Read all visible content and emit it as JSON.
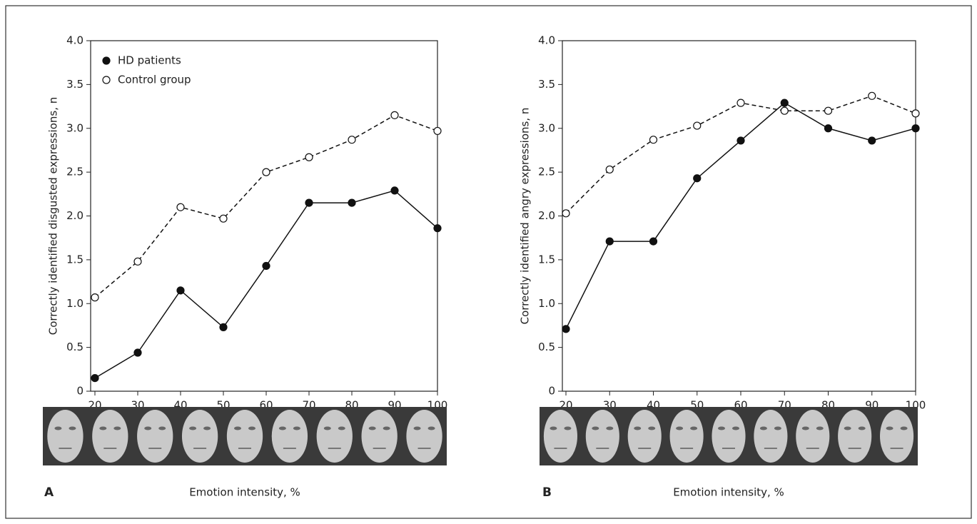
{
  "chart_data": [
    {
      "type": "line",
      "panel": "A",
      "x": [
        20,
        30,
        40,
        50,
        60,
        70,
        80,
        90,
        100
      ],
      "xlim": [
        20,
        100
      ],
      "xticks": [
        20,
        30,
        40,
        50,
        60,
        70,
        80,
        90,
        100
      ],
      "ylim": [
        0,
        4
      ],
      "yticks": [
        0,
        0.5,
        {
          "value": 1,
          "label": "1.0"
        },
        1.5,
        {
          "value": 2,
          "label": "2.0"
        },
        2.5,
        {
          "value": 3,
          "label": "3.0"
        },
        3.5,
        {
          "value": 4,
          "label": "4.0"
        }
      ],
      "x_label": "Emotion intensity, %",
      "y_label": "Correctly identified disgusted expressions, n",
      "legend": "upper left",
      "series": [
        {
          "name": "HD patients",
          "color": "#111111",
          "line_style": "solid",
          "marker": "filled",
          "values": [
            0.15,
            0.44,
            1.15,
            0.73,
            1.43,
            2.15,
            2.15,
            2.29,
            1.86
          ]
        },
        {
          "name": "Control group",
          "color": "#111111",
          "line_style": "dashed",
          "marker": "open",
          "values": [
            1.07,
            1.48,
            2.1,
            1.97,
            2.5,
            2.67,
            2.87,
            3.15,
            2.97
          ]
        }
      ]
    },
    {
      "type": "line",
      "panel": "B",
      "x": [
        20,
        30,
        40,
        50,
        60,
        70,
        80,
        90,
        100
      ],
      "xlim": [
        20,
        100
      ],
      "xticks": [
        20,
        30,
        40,
        50,
        60,
        70,
        80,
        90,
        100
      ],
      "ylim": [
        0,
        4
      ],
      "yticks": [
        0,
        0.5,
        {
          "value": 1,
          "label": "1.0"
        },
        1.5,
        {
          "value": 2,
          "label": "2.0"
        },
        2.5,
        {
          "value": 3,
          "label": "3.0"
        },
        3.5,
        {
          "value": 4,
          "label": "4.0"
        }
      ],
      "x_label": "Emotion intensity, %",
      "y_label": "Correctly identified angry expressions, n",
      "series": [
        {
          "color": "#111111",
          "line_style": "solid",
          "marker": "filled",
          "values": [
            0.71,
            1.71,
            1.71,
            2.43,
            2.86,
            3.29,
            3.0,
            2.86,
            3.0
          ]
        },
        {
          "color": "#111111",
          "line_style": "dashed",
          "marker": "open",
          "values": [
            2.03,
            2.53,
            2.87,
            3.03,
            3.29,
            3.2,
            3.2,
            3.37,
            3.17
          ]
        }
      ]
    }
  ]
}
